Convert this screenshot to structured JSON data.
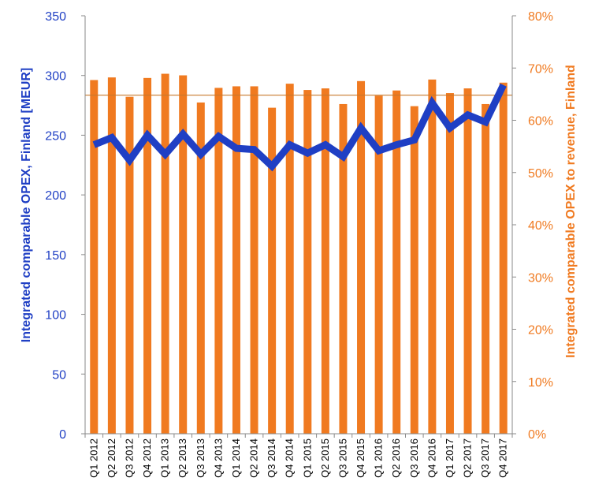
{
  "chart_data": {
    "type": "bar+line",
    "categories": [
      "Q1 2012",
      "Q2 2012",
      "Q3 2012",
      "Q4 2012",
      "Q1 2013",
      "Q2 2013",
      "Q3 2013",
      "Q4 2013",
      "Q1 2014",
      "Q2 2014",
      "Q3 2014",
      "Q4 2014",
      "Q1 2015",
      "Q2 2015",
      "Q3 2015",
      "Q4 2015",
      "Q1 2016",
      "Q2 2016",
      "Q3 2016",
      "Q4 2016",
      "Q1 2017",
      "Q2 2017",
      "Q3 2017",
      "Q4 2017"
    ],
    "series": [
      {
        "axis": "right",
        "kind": "bar",
        "color": "#f07a20",
        "values": [
          0.677,
          0.682,
          0.645,
          0.681,
          0.689,
          0.686,
          0.634,
          0.662,
          0.665,
          0.665,
          0.624,
          0.67,
          0.658,
          0.661,
          0.631,
          0.675,
          0.647,
          0.657,
          0.627,
          0.678,
          0.652,
          0.661,
          0.631,
          0.672
        ]
      },
      {
        "axis": "left",
        "kind": "line",
        "color": "#1f3fc4",
        "values": [
          242,
          248,
          229,
          250,
          234,
          251,
          234,
          249,
          239,
          238,
          224,
          242,
          235,
          242,
          232,
          256,
          237,
          242,
          246,
          277,
          256,
          267,
          261,
          292
        ]
      },
      {
        "axis": "right",
        "kind": "reference-line",
        "color": "#c8782c",
        "value": 0.648
      }
    ],
    "yaxis_left": {
      "label": "Integrated comparable OPEX, Finland [MEUR]",
      "min": 0,
      "max": 350,
      "ticks": [
        0,
        50,
        100,
        150,
        200,
        250,
        300,
        350
      ]
    },
    "yaxis_right": {
      "label": "Integrated comparable OPEX to revenue, Finland",
      "min": 0,
      "max": 0.8,
      "ticks": [
        "0%",
        "10%",
        "20%",
        "30%",
        "40%",
        "50%",
        "60%",
        "70%",
        "80%"
      ]
    },
    "grid": false,
    "legend": "none"
  }
}
